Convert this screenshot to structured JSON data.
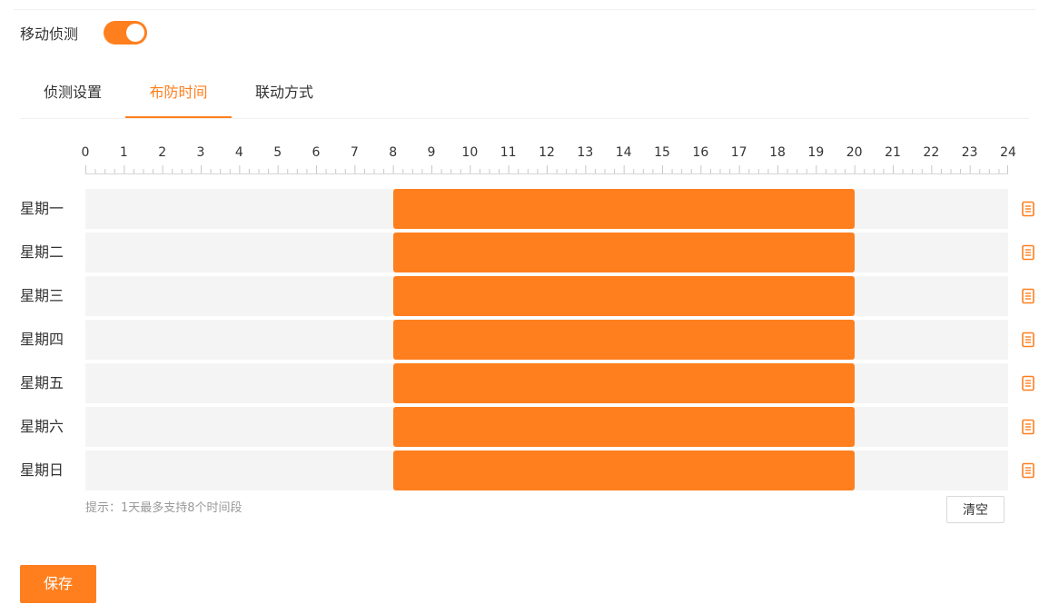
{
  "motion_detection": {
    "label": "移动侦测",
    "enabled": true
  },
  "tabs": [
    {
      "label": "侦测设置",
      "active": false
    },
    {
      "label": "布防时间",
      "active": true
    },
    {
      "label": "联动方式",
      "active": false
    }
  ],
  "schedule": {
    "hours": [
      "0",
      "1",
      "2",
      "3",
      "4",
      "5",
      "6",
      "7",
      "8",
      "9",
      "10",
      "11",
      "12",
      "13",
      "14",
      "15",
      "16",
      "17",
      "18",
      "19",
      "20",
      "21",
      "22",
      "23",
      "24"
    ],
    "days": [
      {
        "label": "星期一",
        "segments": [
          [
            8,
            20
          ]
        ]
      },
      {
        "label": "星期二",
        "segments": [
          [
            8,
            20
          ]
        ]
      },
      {
        "label": "星期三",
        "segments": [
          [
            8,
            20
          ]
        ]
      },
      {
        "label": "星期四",
        "segments": [
          [
            8,
            20
          ]
        ]
      },
      {
        "label": "星期五",
        "segments": [
          [
            8,
            20
          ]
        ]
      },
      {
        "label": "星期六",
        "segments": [
          [
            8,
            20
          ]
        ]
      },
      {
        "label": "星期日",
        "segments": [
          [
            8,
            20
          ]
        ]
      }
    ],
    "copy_icon": "copy-icon",
    "hint": "提示：1天最多支持8个时间段",
    "clear_label": "清空"
  },
  "save_label": "保存",
  "colors": {
    "accent": "#ff7f1e",
    "track": "#f4f4f4"
  }
}
